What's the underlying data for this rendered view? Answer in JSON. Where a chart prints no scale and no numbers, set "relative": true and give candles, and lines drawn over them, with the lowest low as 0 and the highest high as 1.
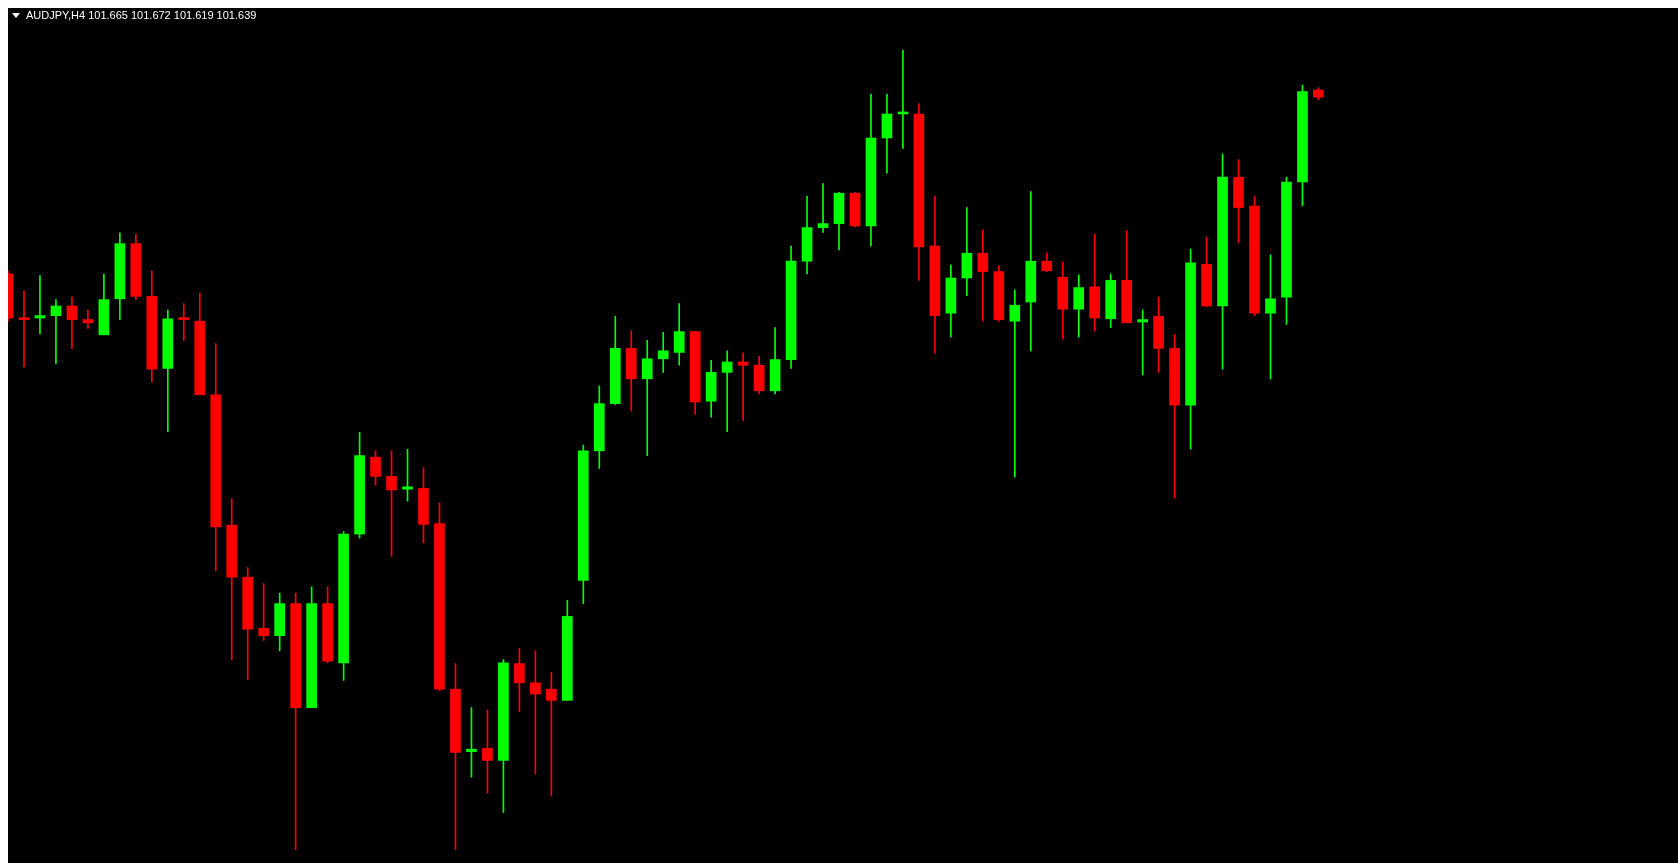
{
  "chart_data": {
    "type": "candlestick",
    "title": "AUDJPY,H4 101.665 101.672 101.619 101.639",
    "relative": true,
    "categories": [
      null,
      null,
      null,
      null,
      null,
      null,
      null,
      null,
      null,
      null,
      null,
      null,
      null,
      null,
      null,
      null,
      null,
      null,
      null,
      null,
      null,
      null,
      null,
      null,
      null,
      null,
      null,
      null,
      null,
      null,
      null,
      null,
      null,
      null,
      null,
      null,
      null,
      null,
      null,
      null,
      null,
      null,
      null,
      null,
      null,
      null,
      null,
      null,
      null,
      null,
      null,
      null,
      null,
      null,
      null,
      null,
      null,
      null,
      null,
      null,
      null,
      null,
      null,
      null,
      null,
      null,
      null,
      null,
      null,
      null,
      null,
      null,
      null,
      null,
      null,
      null,
      null,
      null,
      null,
      null,
      null,
      null,
      null
    ],
    "ohlc": [
      [
        0.72,
        0.724,
        0.661,
        0.665
      ],
      [
        0.665,
        0.699,
        0.604,
        0.663
      ],
      [
        0.665,
        0.718,
        0.645,
        0.668
      ],
      [
        0.668,
        0.688,
        0.608,
        0.68
      ],
      [
        0.68,
        0.691,
        0.627,
        0.663
      ],
      [
        0.663,
        0.675,
        0.652,
        0.659
      ],
      [
        0.644,
        0.72,
        0.644,
        0.688
      ],
      [
        0.689,
        0.771,
        0.663,
        0.758
      ],
      [
        0.758,
        0.77,
        0.688,
        0.692
      ],
      [
        0.692,
        0.724,
        0.585,
        0.601
      ],
      [
        0.602,
        0.675,
        0.523,
        0.664
      ],
      [
        0.665,
        0.683,
        0.637,
        0.663
      ],
      [
        0.661,
        0.696,
        0.569,
        0.569
      ],
      [
        0.569,
        0.633,
        0.349,
        0.404
      ],
      [
        0.406,
        0.439,
        0.238,
        0.341
      ],
      [
        0.341,
        0.353,
        0.213,
        0.276
      ],
      [
        0.277,
        0.333,
        0.262,
        0.268
      ],
      [
        0.268,
        0.321,
        0.249,
        0.308
      ],
      [
        0.308,
        0.321,
        0,
        0.178
      ],
      [
        0.178,
        0.329,
        0.178,
        0.308
      ],
      [
        0.308,
        0.329,
        0.234,
        0.236
      ],
      [
        0.234,
        0.398,
        0.212,
        0.395
      ],
      [
        0.395,
        0.522,
        0.39,
        0.493
      ],
      [
        0.491,
        0.499,
        0.456,
        0.467
      ],
      [
        0.467,
        0.499,
        0.367,
        0.45
      ],
      [
        0.451,
        0.501,
        0.436,
        0.454
      ],
      [
        0.452,
        0.478,
        0.384,
        0.407
      ],
      [
        0.408,
        0.434,
        0.199,
        0.201
      ],
      [
        0.201,
        0.233,
        0,
        0.122
      ],
      [
        0.123,
        0.178,
        0.091,
        0.126
      ],
      [
        0.127,
        0.175,
        0.071,
        0.112
      ],
      [
        0.112,
        0.238,
        0.047,
        0.234
      ],
      [
        0.233,
        0.252,
        0.173,
        0.209
      ],
      [
        0.209,
        0.249,
        0.095,
        0.195
      ],
      [
        0.201,
        0.222,
        0.068,
        0.187
      ],
      [
        0.187,
        0.312,
        0.187,
        0.292
      ],
      [
        0.337,
        0.506,
        0.308,
        0.499
      ],
      [
        0.499,
        0.58,
        0.477,
        0.558
      ],
      [
        0.558,
        0.667,
        0.557,
        0.627
      ],
      [
        0.627,
        0.649,
        0.549,
        0.589
      ],
      [
        0.589,
        0.637,
        0.493,
        0.614
      ],
      [
        0.614,
        0.647,
        0.597,
        0.624
      ],
      [
        0.622,
        0.683,
        0.606,
        0.648
      ],
      [
        0.648,
        0.648,
        0.545,
        0.56
      ],
      [
        0.561,
        0.612,
        0.541,
        0.597
      ],
      [
        0.597,
        0.624,
        0.523,
        0.61
      ],
      [
        0.61,
        0.621,
        0.537,
        0.606
      ],
      [
        0.606,
        0.617,
        0.57,
        0.574
      ],
      [
        0.574,
        0.653,
        0.57,
        0.613
      ],
      [
        0.613,
        0.755,
        0.602,
        0.736
      ],
      [
        0.736,
        0.817,
        0.72,
        0.778
      ],
      [
        0.778,
        0.833,
        0.772,
        0.783
      ],
      [
        0.783,
        0.822,
        0.75,
        0.821
      ],
      [
        0.821,
        0.822,
        0.779,
        0.78
      ],
      [
        0.78,
        0.945,
        0.755,
        0.89
      ],
      [
        0.89,
        0.945,
        0.846,
        0.92
      ],
      [
        0.92,
        1,
        0.877,
        0.921
      ],
      [
        0.92,
        0.933,
        0.712,
        0.754
      ],
      [
        0.755,
        0.817,
        0.621,
        0.668
      ],
      [
        0.671,
        0.731,
        0.641,
        0.715
      ],
      [
        0.715,
        0.803,
        0.693,
        0.746
      ],
      [
        0.746,
        0.775,
        0.661,
        0.723
      ],
      [
        0.723,
        0.73,
        0.661,
        0.663
      ],
      [
        0.661,
        0.7,
        0.466,
        0.681
      ],
      [
        0.685,
        0.823,
        0.624,
        0.736
      ],
      [
        0.736,
        0.746,
        0.723,
        0.724
      ],
      [
        0.716,
        0.735,
        0.639,
        0.676
      ],
      [
        0.676,
        0.719,
        0.641,
        0.703
      ],
      [
        0.704,
        0.77,
        0.649,
        0.665
      ],
      [
        0.664,
        0.72,
        0.653,
        0.712
      ],
      [
        0.712,
        0.774,
        0.659,
        0.659
      ],
      [
        0.66,
        0.675,
        0.594,
        0.663
      ],
      [
        0.667,
        0.691,
        0.597,
        0.627
      ],
      [
        0.627,
        0.644,
        0.44,
        0.556
      ],
      [
        0.556,
        0.751,
        0.501,
        0.734
      ],
      [
        0.732,
        0.766,
        0.679,
        0.68
      ],
      [
        0.68,
        0.87,
        0.601,
        0.841
      ],
      [
        0.841,
        0.863,
        0.759,
        0.803
      ],
      [
        0.805,
        0.817,
        0.668,
        0.671
      ],
      [
        0.671,
        0.744,
        0.589,
        0.689
      ],
      [
        0.691,
        0.841,
        0.657,
        0.835
      ],
      [
        0.835,
        0.956,
        0.805,
        0.948
      ],
      [
        0.95,
        0.953,
        0.938,
        0.941
      ]
    ],
    "colors": [
      "#ff0000",
      "#ff0000",
      "#00ff00",
      "#00ff00",
      "#ff0000",
      "#ff0000",
      "#00ff00",
      "#00ff00",
      "#ff0000",
      "#ff0000",
      "#00ff00",
      "#ff0000",
      "#ff0000",
      "#ff0000",
      "#ff0000",
      "#ff0000",
      "#ff0000",
      "#00ff00",
      "#ff0000",
      "#00ff00",
      "#ff0000",
      "#00ff00",
      "#00ff00",
      "#ff0000",
      "#ff0000",
      "#00ff00",
      "#ff0000",
      "#ff0000",
      "#ff0000",
      "#00ff00",
      "#ff0000",
      "#00ff00",
      "#ff0000",
      "#ff0000",
      "#ff0000",
      "#00ff00",
      "#00ff00",
      "#00ff00",
      "#00ff00",
      "#ff0000",
      "#00ff00",
      "#00ff00",
      "#00ff00",
      "#ff0000",
      "#00ff00",
      "#00ff00",
      "#ff0000",
      "#ff0000",
      "#00ff00",
      "#00ff00",
      "#00ff00",
      "#00ff00",
      "#00ff00",
      "#ff0000",
      "#00ff00",
      "#00ff00",
      "#00ff00",
      "#ff0000",
      "#ff0000",
      "#00ff00",
      "#00ff00",
      "#ff0000",
      "#ff0000",
      "#00ff00",
      "#00ff00",
      "#ff0000",
      "#ff0000",
      "#00ff00",
      "#ff0000",
      "#00ff00",
      "#ff0000",
      "#00ff00",
      "#ff0000",
      "#ff0000",
      "#00ff00",
      "#ff0000",
      "#00ff00",
      "#ff0000",
      "#ff0000",
      "#00ff00",
      "#00ff00",
      "#00ff00",
      "#ff0000"
    ]
  }
}
